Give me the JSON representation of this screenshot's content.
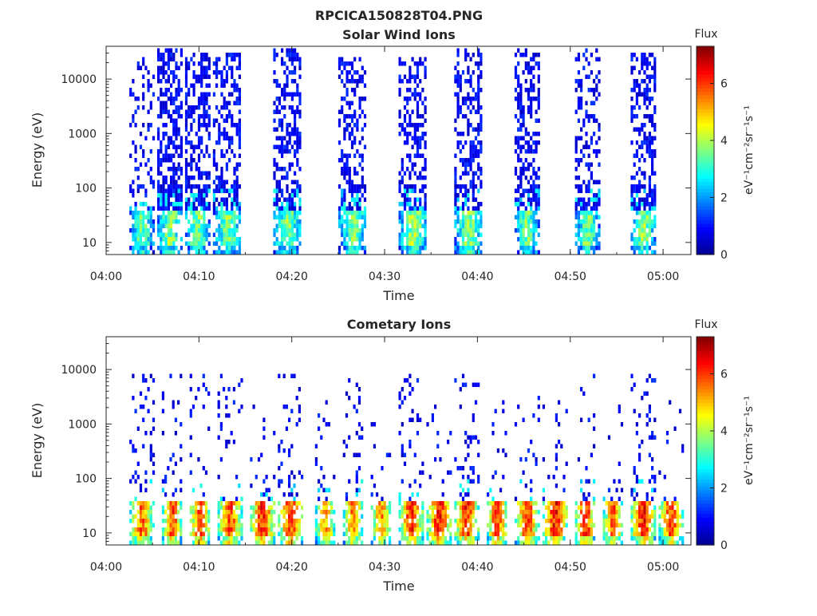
{
  "figure": {
    "filename": "RPCICA150828T04.PNG"
  },
  "colors": {
    "axis": "#262626",
    "background": "#ffffff",
    "colormap": [
      "#00008f",
      "#0000ff",
      "#0080ff",
      "#00ffff",
      "#80ff80",
      "#ffff00",
      "#ff8000",
      "#ff0000",
      "#800000"
    ]
  },
  "chart_data": [
    {
      "type": "heatmap",
      "title": "Solar Wind Ions",
      "xlabel": "Time",
      "ylabel": "Energy (eV)",
      "x_range": [
        "04:00",
        "05:03"
      ],
      "y_scale": "log",
      "ylim": [
        6,
        40000
      ],
      "xticks": [
        "04:00",
        "04:10",
        "04:20",
        "04:30",
        "04:40",
        "04:50",
        "05:00"
      ],
      "yticks": [
        "10",
        "100",
        "1000",
        "10000"
      ],
      "colorbar": {
        "label_top": "Flux",
        "units": "eV⁻¹cm⁻²sr⁻¹s⁻¹",
        "range": [
          0,
          7.3
        ],
        "ticks": [
          "0",
          "2",
          "4",
          "6"
        ]
      },
      "grid": false,
      "bursts": [
        {
          "start": "04:02.5",
          "end": "04:05.0",
          "low_flux": 4.2,
          "low_emax": 40,
          "high_density": 0.25,
          "high_emax": 25000
        },
        {
          "start": "04:05.5",
          "end": "04:08.0",
          "low_flux": 4.4,
          "low_emax": 40,
          "high_density": 0.55,
          "high_emax": 35000
        },
        {
          "start": "04:08.5",
          "end": "04:11.0",
          "low_flux": 4.4,
          "low_emax": 40,
          "high_density": 0.5,
          "high_emax": 30000
        },
        {
          "start": "04:11.5",
          "end": "04:14.5",
          "low_flux": 4.3,
          "low_emax": 40,
          "high_density": 0.45,
          "high_emax": 30000
        },
        {
          "start": "04:18.0",
          "end": "04:21.0",
          "low_flux": 4.3,
          "low_emax": 40,
          "high_density": 0.4,
          "high_emax": 35000
        },
        {
          "start": "04:25.0",
          "end": "04:28.0",
          "low_flux": 4.2,
          "low_emax": 40,
          "high_density": 0.4,
          "high_emax": 25000
        },
        {
          "start": "04:31.5",
          "end": "04:34.5",
          "low_flux": 4.6,
          "low_emax": 40,
          "high_density": 0.4,
          "high_emax": 25000
        },
        {
          "start": "04:37.5",
          "end": "04:40.5",
          "low_flux": 4.5,
          "low_emax": 40,
          "high_density": 0.4,
          "high_emax": 35000
        },
        {
          "start": "04:44.0",
          "end": "04:46.5",
          "low_flux": 4.2,
          "low_emax": 40,
          "high_density": 0.4,
          "high_emax": 35000
        },
        {
          "start": "04:50.5",
          "end": "04:53.0",
          "low_flux": 4.3,
          "low_emax": 40,
          "high_density": 0.4,
          "high_emax": 35000
        },
        {
          "start": "04:56.5",
          "end": "04:59.0",
          "low_flux": 4.5,
          "low_emax": 40,
          "high_density": 0.45,
          "high_emax": 30000
        }
      ]
    },
    {
      "type": "heatmap",
      "title": "Cometary Ions",
      "xlabel": "Time",
      "ylabel": "Energy (eV)",
      "x_range": [
        "04:00",
        "05:03"
      ],
      "y_scale": "log",
      "ylim": [
        6,
        40000
      ],
      "xticks": [
        "04:00",
        "04:10",
        "04:20",
        "04:30",
        "04:40",
        "04:50",
        "05:00"
      ],
      "yticks": [
        "10",
        "100",
        "1000",
        "10000"
      ],
      "colorbar": {
        "label_top": "Flux",
        "units": "eV⁻¹cm⁻²sr⁻¹s⁻¹",
        "range": [
          0,
          7.3
        ],
        "ticks": [
          "0",
          "2",
          "4",
          "6"
        ]
      },
      "grid": false,
      "bursts": [
        {
          "start": "04:02.5",
          "end": "04:05.0",
          "low_flux": 6.3,
          "low_emax": 40,
          "high_density": 0.12,
          "high_emax": 9000
        },
        {
          "start": "04:06.0",
          "end": "04:08.0",
          "low_flux": 6.6,
          "low_emax": 40,
          "high_density": 0.12,
          "high_emax": 9000
        },
        {
          "start": "04:09.0",
          "end": "04:11.0",
          "low_flux": 6.8,
          "low_emax": 40,
          "high_density": 0.1,
          "high_emax": 9000
        },
        {
          "start": "04:12.0",
          "end": "04:14.5",
          "low_flux": 6.5,
          "low_emax": 40,
          "high_density": 0.12,
          "high_emax": 9000
        },
        {
          "start": "04:15.5",
          "end": "04:18.0",
          "low_flux": 6.9,
          "low_emax": 40,
          "high_density": 0.08,
          "high_emax": 3000
        },
        {
          "start": "04:18.5",
          "end": "04:21.0",
          "low_flux": 6.7,
          "low_emax": 40,
          "high_density": 0.12,
          "high_emax": 9000
        },
        {
          "start": "04:22.5",
          "end": "04:24.5",
          "low_flux": 6.0,
          "low_emax": 40,
          "high_density": 0.08,
          "high_emax": 3000
        },
        {
          "start": "04:25.5",
          "end": "04:27.5",
          "low_flux": 6.2,
          "low_emax": 40,
          "high_density": 0.12,
          "high_emax": 9000
        },
        {
          "start": "04:28.5",
          "end": "04:30.5",
          "low_flux": 6.0,
          "low_emax": 40,
          "high_density": 0.06,
          "high_emax": 3000
        },
        {
          "start": "04:31.5",
          "end": "04:34.0",
          "low_flux": 6.8,
          "low_emax": 40,
          "high_density": 0.12,
          "high_emax": 9000
        },
        {
          "start": "04:34.5",
          "end": "04:37.0",
          "low_flux": 6.9,
          "low_emax": 40,
          "high_density": 0.06,
          "high_emax": 3000
        },
        {
          "start": "04:37.5",
          "end": "04:40.0",
          "low_flux": 6.8,
          "low_emax": 40,
          "high_density": 0.12,
          "high_emax": 9000
        },
        {
          "start": "04:41.0",
          "end": "04:43.0",
          "low_flux": 6.8,
          "low_emax": 40,
          "high_density": 0.06,
          "high_emax": 3000
        },
        {
          "start": "04:44.0",
          "end": "04:46.5",
          "low_flux": 6.6,
          "low_emax": 40,
          "high_density": 0.08,
          "high_emax": 4000
        },
        {
          "start": "04:47.0",
          "end": "04:49.5",
          "low_flux": 7.0,
          "low_emax": 40,
          "high_density": 0.06,
          "high_emax": 3000
        },
        {
          "start": "04:50.5",
          "end": "04:52.5",
          "low_flux": 6.9,
          "low_emax": 40,
          "high_density": 0.12,
          "high_emax": 9000
        },
        {
          "start": "04:53.5",
          "end": "04:55.5",
          "low_flux": 6.5,
          "low_emax": 40,
          "high_density": 0.06,
          "high_emax": 3000
        },
        {
          "start": "04:56.5",
          "end": "04:59.0",
          "low_flux": 6.9,
          "low_emax": 40,
          "high_density": 0.12,
          "high_emax": 9000
        },
        {
          "start": "04:59.5",
          "end": "05:02.0",
          "low_flux": 6.6,
          "low_emax": 40,
          "high_density": 0.06,
          "high_emax": 3000
        }
      ]
    }
  ]
}
